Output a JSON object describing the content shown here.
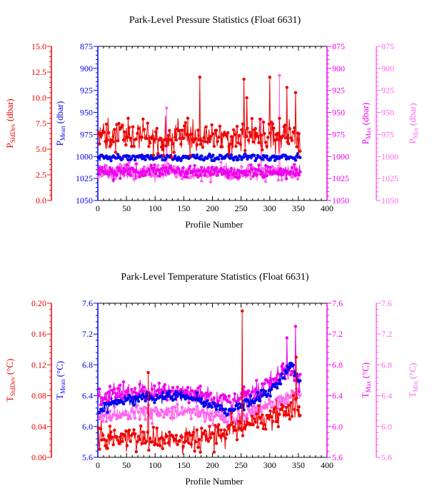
{
  "colors": {
    "stddev": "#ee0000",
    "mean": "#0000ee",
    "max": "#ee00ee",
    "min": "#ff66ee",
    "frame": "#000000"
  },
  "chart_data": [
    {
      "type": "line",
      "title": "Park-Level Pressure Statistics (Float 6631)",
      "xlabel": "Profile Number",
      "x_ticks": [
        "0",
        "50",
        "100",
        "150",
        "200",
        "250",
        "300",
        "350",
        "400"
      ],
      "xlim": [
        0,
        400
      ],
      "axes": [
        {
          "id": "std",
          "label_main": "P",
          "label_sub": "StdDev",
          "label_unit": " (dbar)",
          "color_key": "stddev",
          "ticks": [
            "0.0",
            "2.5",
            "5.0",
            "7.5",
            "10.0",
            "12.5",
            "15.0"
          ],
          "lim": [
            0,
            15
          ],
          "reversed": false
        },
        {
          "id": "mean",
          "label_main": "P",
          "label_sub": "Mean",
          "label_unit": " (dbar)",
          "color_key": "mean",
          "ticks": [
            "875",
            "900",
            "925",
            "950",
            "975",
            "1000",
            "1025",
            "1050"
          ],
          "lim": [
            875,
            1050
          ],
          "reversed": true
        },
        {
          "id": "max",
          "label_main": "P",
          "label_sub": "Max",
          "label_unit": " (dbar)",
          "color_key": "max",
          "ticks": [
            "875",
            "900",
            "925",
            "950",
            "975",
            "1000",
            "1025",
            "1050"
          ],
          "lim": [
            875,
            1050
          ],
          "reversed": true
        },
        {
          "id": "min",
          "label_main": "P",
          "label_sub": "Min",
          "label_unit": " (dbar)",
          "color_key": "min",
          "ticks": [
            "875",
            "900",
            "925",
            "950",
            "975",
            "1000",
            "1025",
            "1050"
          ],
          "lim": [
            875,
            1050
          ],
          "reversed": true
        }
      ],
      "series": [
        {
          "axis": "max",
          "color_key": "min",
          "x_range": [
            1,
            353
          ],
          "base": 1018,
          "noise": 6,
          "spikes": [
            [
              120,
              945
            ],
            [
              317,
              908
            ],
            [
              285,
              958
            ]
          ]
        },
        {
          "axis": "max",
          "color_key": "max",
          "x_range": [
            1,
            353
          ],
          "base": 1017,
          "noise": 5,
          "spikes": []
        },
        {
          "axis": "mean",
          "color_key": "mean",
          "x_range": [
            1,
            353
          ],
          "base": 1001,
          "noise": 2.5,
          "spikes": []
        },
        {
          "axis": "std",
          "color_key": "stddev",
          "x_range": [
            1,
            353
          ],
          "base": 6.2,
          "noise": 1.1,
          "spikes": [
            [
              178,
              12.0
            ],
            [
              255,
              11.8
            ],
            [
              260,
              10.0
            ],
            [
              300,
              12.0
            ],
            [
              330,
              11.0
            ],
            [
              345,
              10.5
            ]
          ]
        }
      ]
    },
    {
      "type": "line",
      "title": "Park-Level Temperature Statistics (Float 6631)",
      "xlabel": "Profile Number",
      "x_ticks": [
        "0",
        "50",
        "100",
        "150",
        "200",
        "250",
        "300",
        "350",
        "400"
      ],
      "xlim": [
        0,
        400
      ],
      "axes": [
        {
          "id": "std",
          "label_main": "T",
          "label_sub": "StdDev",
          "label_unit": " (°C)",
          "color_key": "stddev",
          "ticks": [
            "0.00",
            "0.04",
            "0.08",
            "0.12",
            "0.16",
            "0.20"
          ],
          "lim": [
            0,
            0.2
          ],
          "reversed": false
        },
        {
          "id": "mean",
          "label_main": "T",
          "label_sub": "Mean",
          "label_unit": " (°C)",
          "color_key": "mean",
          "ticks": [
            "5.6",
            "6.0",
            "6.4",
            "6.8",
            "7.2",
            "7.6"
          ],
          "lim": [
            5.6,
            7.6
          ],
          "reversed": false
        },
        {
          "id": "max",
          "label_main": "T",
          "label_sub": "Max",
          "label_unit": " (°C)",
          "color_key": "max",
          "ticks": [
            "5.6",
            "6.0",
            "6.4",
            "6.8",
            "7.2",
            "7.6"
          ],
          "lim": [
            5.6,
            7.6
          ],
          "reversed": false
        },
        {
          "id": "min",
          "label_main": "T",
          "label_sub": "Min",
          "label_unit": " (°C)",
          "color_key": "min",
          "ticks": [
            "5.6",
            "6.0",
            "6.4",
            "6.8",
            "7.2",
            "7.6"
          ],
          "lim": [
            5.6,
            7.6
          ],
          "reversed": false
        }
      ],
      "series": [
        {
          "axis": "min",
          "color_key": "min",
          "x_range": [
            1,
            353
          ],
          "base": 6.15,
          "noise": 0.07,
          "trend": [
            [
              0,
              6.15
            ],
            [
              160,
              6.2
            ],
            [
              240,
              6.1
            ],
            [
              300,
              6.3
            ],
            [
              353,
              6.45
            ]
          ],
          "spikes": []
        },
        {
          "axis": "max",
          "color_key": "max",
          "x_range": [
            1,
            353
          ],
          "base": 6.35,
          "noise": 0.09,
          "trend": [
            [
              0,
              6.35
            ],
            [
              40,
              6.45
            ],
            [
              150,
              6.45
            ],
            [
              230,
              6.3
            ],
            [
              300,
              6.55
            ],
            [
              330,
              6.75
            ],
            [
              353,
              6.6
            ]
          ],
          "spikes": [
            [
              330,
              7.15
            ],
            [
              345,
              7.3
            ]
          ]
        },
        {
          "axis": "mean",
          "color_key": "mean",
          "x_range": [
            1,
            353
          ],
          "base": 6.25,
          "noise": 0.05,
          "trend": [
            [
              0,
              6.2
            ],
            [
              40,
              6.35
            ],
            [
              150,
              6.4
            ],
            [
              230,
              6.2
            ],
            [
              300,
              6.45
            ],
            [
              340,
              6.8
            ],
            [
              353,
              6.55
            ]
          ],
          "spikes": []
        },
        {
          "axis": "std",
          "color_key": "stddev",
          "x_range": [
            1,
            353
          ],
          "base": 0.03,
          "noise": 0.012,
          "trend": [
            [
              0,
              0.025
            ],
            [
              200,
              0.025
            ],
            [
              260,
              0.04
            ],
            [
              330,
              0.06
            ],
            [
              353,
              0.06
            ]
          ],
          "spikes": [
            [
              88,
              0.11
            ],
            [
              252,
              0.19
            ],
            [
              346,
              0.13
            ]
          ]
        }
      ]
    }
  ]
}
